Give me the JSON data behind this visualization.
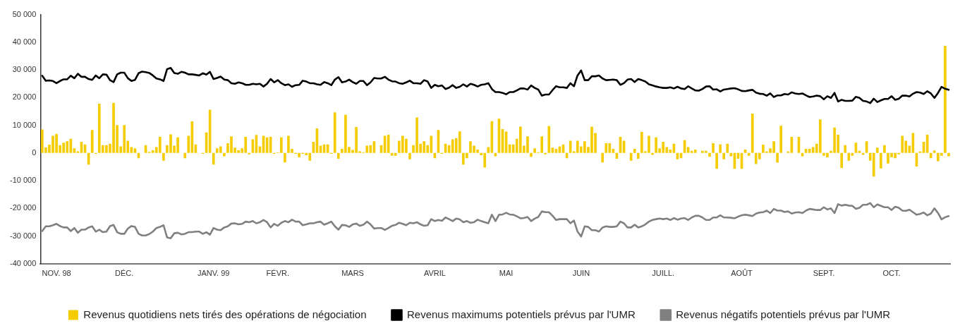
{
  "chart_data": {
    "type": "bar",
    "categories": [
      null,
      null,
      null,
      null,
      "NOV. 98",
      null,
      null,
      null,
      null,
      null,
      null,
      null,
      null,
      null,
      null,
      null,
      null,
      null,
      null,
      null,
      null,
      null,
      null,
      "DÉC.",
      null,
      null,
      null,
      null,
      null,
      null,
      null,
      null,
      null,
      null,
      null,
      null,
      null,
      null,
      null,
      null,
      null,
      null,
      null,
      null,
      null,
      null,
      null,
      null,
      "JANV. 99",
      null,
      null,
      null,
      null,
      null,
      null,
      null,
      null,
      null,
      null,
      null,
      null,
      null,
      null,
      null,
      null,
      null,
      "FÉVR.",
      null,
      null,
      null,
      null,
      null,
      null,
      null,
      null,
      null,
      null,
      null,
      null,
      null,
      null,
      null,
      null,
      null,
      null,
      null,
      null,
      "MARS",
      null,
      null,
      null,
      null,
      null,
      null,
      null,
      null,
      null,
      null,
      null,
      null,
      null,
      null,
      null,
      null,
      null,
      null,
      null,
      null,
      null,
      null,
      "AVRIL",
      null,
      null,
      null,
      null,
      null,
      null,
      null,
      null,
      null,
      null,
      null,
      null,
      null,
      null,
      null,
      null,
      null,
      null,
      null,
      "MAI",
      null,
      null,
      null,
      null,
      null,
      null,
      null,
      null,
      null,
      null,
      null,
      null,
      null,
      null,
      null,
      null,
      null,
      null,
      null,
      null,
      "JUIN",
      null,
      null,
      null,
      null,
      null,
      null,
      null,
      null,
      null,
      null,
      null,
      null,
      null,
      null,
      null,
      null,
      null,
      null,
      null,
      null,
      null,
      null,
      "JUILL.",
      null,
      null,
      null,
      null,
      null,
      null,
      null,
      null,
      null,
      null,
      null,
      null,
      null,
      null,
      null,
      null,
      null,
      null,
      null,
      null,
      null,
      "AOÛT",
      null,
      null,
      null,
      null,
      null,
      null,
      null,
      null,
      null,
      null,
      null,
      null,
      null,
      null,
      null,
      null,
      null,
      null,
      null,
      null,
      null,
      null,
      "SEPT.",
      null,
      null,
      null,
      null,
      null,
      null,
      null,
      null,
      null,
      null,
      null,
      null,
      null,
      null,
      null,
      null,
      null,
      null,
      "OCT.",
      null,
      null,
      null,
      null,
      null,
      null,
      null,
      null,
      null,
      null,
      null,
      null,
      null,
      null,
      null,
      null
    ],
    "series": [
      {
        "name": "Revenus quotidiens nets tirés des opérations de négociation",
        "color": "#f5cc00",
        "values": [
          8500,
          2000,
          3000,
          6200,
          6900,
          2800,
          3700,
          4200,
          5100,
          1700,
          600,
          4000,
          3100,
          -4200,
          8300,
          -300,
          17800,
          2800,
          2800,
          3300,
          18100,
          10100,
          2400,
          10100,
          4400,
          2100,
          1700,
          -1900,
          0,
          2800,
          400,
          1000,
          2100,
          5800,
          -2800,
          2800,
          6700,
          2600,
          5600,
          0,
          -1900,
          6200,
          11400,
          3100,
          0,
          -300,
          7400,
          15600,
          -4200,
          1700,
          2400,
          -1200,
          3500,
          6000,
          1900,
          1000,
          1700,
          5800,
          -500,
          4900,
          6500,
          2400,
          6200,
          5600,
          5800,
          -300,
          200,
          5600,
          -3400,
          6200,
          1500,
          -300,
          -1600,
          -300,
          -800,
          -2800,
          4000,
          8900,
          2600,
          3100,
          3100,
          -300,
          14700,
          -2100,
          1500,
          13800,
          2200,
          1100,
          9400,
          600,
          300,
          2600,
          2800,
          4200,
          0,
          2800,
          6200,
          6600,
          -1000,
          -1000,
          4400,
          6200,
          5100,
          -2300,
          2800,
          12800,
          3300,
          4200,
          2800,
          6200,
          -1900,
          8300,
          -300,
          3300,
          2800,
          4900,
          5400,
          7800,
          -4200,
          -1900,
          4200,
          2600,
          1200,
          -800,
          -5300,
          2100,
          11500,
          -1200,
          12400,
          8600,
          7700,
          3100,
          3100,
          5100,
          9500,
          2600,
          6000,
          -1400,
          1700,
          300,
          6000,
          -500,
          9700,
          1900,
          1500,
          2400,
          3100,
          -1900,
          4400,
          600,
          4400,
          2400,
          4200,
          2200,
          9500,
          7200,
          0,
          -3400,
          3500,
          3500,
          1500,
          -2100,
          5800,
          4400,
          0,
          -2800,
          1500,
          -2100,
          7600,
          600,
          6200,
          -700,
          5600,
          1700,
          4000,
          2100,
          1200,
          3300,
          -2300,
          -1900,
          4600,
          2100,
          800,
          1200,
          0,
          800,
          800,
          -1400,
          3500,
          -5700,
          3100,
          -2300,
          3300,
          -1200,
          -5700,
          -2100,
          -5700,
          1200,
          -1000,
          14200,
          -4000,
          -2300,
          3000,
          500,
          1700,
          4200,
          -3500,
          9800,
          0,
          500,
          5800,
          0,
          5800,
          -1200,
          1500,
          1500,
          2100,
          3300,
          12100,
          -1000,
          -1600,
          800,
          9200,
          6600,
          -5400,
          2800,
          -2800,
          -1000,
          3700,
          800,
          -700,
          4200,
          -2800,
          -8500,
          1900,
          -5600,
          2800,
          -3800,
          -1600,
          -1900,
          -500,
          6200,
          4400,
          2600,
          7200,
          -4900,
          500,
          4000,
          6600,
          -1900,
          900,
          -3000,
          -1000,
          38700,
          -1200
        ]
      },
      {
        "name": "Revenus maximums potentiels prévus par l'UMR",
        "type": "line",
        "color": "#000000",
        "values": [
          27900,
          26100,
          26200,
          26000,
          25200,
          26000,
          26600,
          26600,
          27900,
          27000,
          28600,
          27500,
          27500,
          26700,
          26400,
          28000,
          27000,
          28400,
          28300,
          26300,
          25600,
          28400,
          29000,
          29000,
          27000,
          26000,
          26400,
          28800,
          29400,
          29200,
          28900,
          28000,
          26900,
          26600,
          26000,
          30300,
          30700,
          28900,
          28600,
          29300,
          29000,
          28400,
          28400,
          28200,
          28000,
          28800,
          28300,
          29300,
          26700,
          27100,
          27600,
          26500,
          26300,
          25200,
          25000,
          25500,
          25200,
          24600,
          24600,
          25000,
          24800,
          25000,
          24000,
          25000,
          26700,
          25500,
          26300,
          25200,
          24500,
          24800,
          23900,
          24500,
          24600,
          26100,
          25800,
          25200,
          25200,
          24800,
          24600,
          25600,
          25200,
          24500,
          26500,
          27400,
          25500,
          25800,
          26500,
          25600,
          25000,
          26000,
          26000,
          24500,
          25500,
          27100,
          26900,
          26900,
          27500,
          26500,
          25900,
          25800,
          25200,
          25000,
          25500,
          26100,
          25200,
          25200,
          25000,
          26300,
          25800,
          23500,
          24600,
          24100,
          24400,
          23100,
          23600,
          24500,
          23500,
          23900,
          24800,
          24000,
          25000,
          24600,
          24000,
          24600,
          24800,
          25200,
          23100,
          22000,
          22000,
          21700,
          21200,
          22000,
          22000,
          22600,
          23300,
          23300,
          22900,
          24400,
          23500,
          22900,
          20700,
          21100,
          21100,
          22700,
          24100,
          23700,
          23700,
          23500,
          25200,
          24100,
          28000,
          29800,
          26300,
          26300,
          27700,
          27700,
          28000,
          26900,
          26300,
          26400,
          26500,
          26300,
          24600,
          25200,
          26500,
          26700,
          25600,
          26700,
          26300,
          25800,
          24800,
          24400,
          24000,
          23700,
          23500,
          23500,
          23700,
          23300,
          23900,
          23300,
          23100,
          24100,
          23300,
          22600,
          22500,
          23100,
          24000,
          24100,
          22900,
          23000,
          22200,
          22900,
          23100,
          23300,
          23400,
          23000,
          22400,
          22300,
          22600,
          22800,
          21800,
          21400,
          21300,
          20700,
          21500,
          20200,
          20800,
          20800,
          21300,
          21100,
          21900,
          21500,
          21300,
          21500,
          20800,
          20200,
          20400,
          20700,
          20500,
          19400,
          20500,
          19900,
          21700,
          18600,
          19200,
          18800,
          18800,
          18900,
          20300,
          19900,
          18800,
          18600,
          18000,
          19600,
          18400,
          19000,
          19500,
          19500,
          20500,
          19200,
          19600,
          20700,
          20700,
          20400,
          21400,
          22000,
          21800,
          21300,
          22300,
          21500,
          19900,
          21700,
          23900,
          23200,
          22800
        ]
      },
      {
        "name": "Revenus négatifs potentiels prévus par l'UMR",
        "type": "line",
        "color": "#808080",
        "values": [
          -28200,
          -26500,
          -26500,
          -26100,
          -25600,
          -26400,
          -26900,
          -26900,
          -28200,
          -27100,
          -28800,
          -27700,
          -27700,
          -26900,
          -26500,
          -28400,
          -27700,
          -28600,
          -28400,
          -26400,
          -26000,
          -28600,
          -29200,
          -29200,
          -27300,
          -26400,
          -26700,
          -29200,
          -29800,
          -29800,
          -29300,
          -28400,
          -27100,
          -26700,
          -26100,
          -30500,
          -30800,
          -29000,
          -28800,
          -29400,
          -29200,
          -28600,
          -28600,
          -28400,
          -28400,
          -29200,
          -28600,
          -29500,
          -27100,
          -27700,
          -27900,
          -26900,
          -26500,
          -25500,
          -25400,
          -25800,
          -25600,
          -24800,
          -25000,
          -24600,
          -25400,
          -25000,
          -24200,
          -25000,
          -26900,
          -25600,
          -26300,
          -25200,
          -24600,
          -25000,
          -24100,
          -24800,
          -24800,
          -26100,
          -25800,
          -25400,
          -25400,
          -25000,
          -24800,
          -25900,
          -25400,
          -24800,
          -26500,
          -27700,
          -26000,
          -26100,
          -26700,
          -25800,
          -25500,
          -26300,
          -25900,
          -24800,
          -25800,
          -27300,
          -27100,
          -27100,
          -27800,
          -27100,
          -26300,
          -26000,
          -25200,
          -25600,
          -26100,
          -25200,
          -25400,
          -25000,
          -25800,
          -26300,
          -26100,
          -23900,
          -24600,
          -24200,
          -24500,
          -23300,
          -23900,
          -24600,
          -23700,
          -24000,
          -25000,
          -24600,
          -25200,
          -25000,
          -24100,
          -24600,
          -25000,
          -25400,
          -22300,
          -24600,
          -22300,
          -22200,
          -21600,
          -22200,
          -22300,
          -22900,
          -23600,
          -23500,
          -23100,
          -24600,
          -23700,
          -23100,
          -21100,
          -21400,
          -21400,
          -22700,
          -24200,
          -23900,
          -23900,
          -23900,
          -25400,
          -24400,
          -28400,
          -30200,
          -26500,
          -26700,
          -27900,
          -27900,
          -28400,
          -26900,
          -26500,
          -26700,
          -26700,
          -26500,
          -24800,
          -25400,
          -26900,
          -26900,
          -25900,
          -26900,
          -26500,
          -25800,
          -24800,
          -24200,
          -23900,
          -23700,
          -23900,
          -23700,
          -24200,
          -23500,
          -24100,
          -23700,
          -23500,
          -24200,
          -23300,
          -22700,
          -22700,
          -23300,
          -24200,
          -24200,
          -23300,
          -23300,
          -22500,
          -23300,
          -23300,
          -23400,
          -23600,
          -23000,
          -22500,
          -22300,
          -22500,
          -22800,
          -21900,
          -21500,
          -21400,
          -20800,
          -21700,
          -20200,
          -20800,
          -20800,
          -21300,
          -21100,
          -21900,
          -21500,
          -21400,
          -21700,
          -20800,
          -20200,
          -20400,
          -20600,
          -20600,
          -19600,
          -20400,
          -20000,
          -21700,
          -18500,
          -19000,
          -18700,
          -19000,
          -19100,
          -20200,
          -19800,
          -18700,
          -18700,
          -18100,
          -19600,
          -18600,
          -19100,
          -19600,
          -19600,
          -20600,
          -19400,
          -19800,
          -20800,
          -20900,
          -20500,
          -21400,
          -22300,
          -22000,
          -21500,
          -22500,
          -21900,
          -20000,
          -21700,
          -24000,
          -23200,
          -22800
        ]
      }
    ],
    "ylim": [
      -40000,
      50000
    ],
    "yticks": [
      {
        "value": -40000,
        "label": "-40 000"
      },
      {
        "value": -30000,
        "label": "-30 000"
      },
      {
        "value": -20000,
        "label": "-20 000"
      },
      {
        "value": -10000,
        "label": "-10 000"
      },
      {
        "value": 0,
        "label": "0"
      },
      {
        "value": 10000,
        "label": "10 000"
      },
      {
        "value": 20000,
        "label": "20 000"
      },
      {
        "value": 30000,
        "label": "30 000"
      },
      {
        "value": 40000,
        "label": "40 000"
      },
      {
        "value": 50000,
        "label": "50 000"
      }
    ],
    "legend": "bottom",
    "marker": "none",
    "line_style": "solid"
  }
}
